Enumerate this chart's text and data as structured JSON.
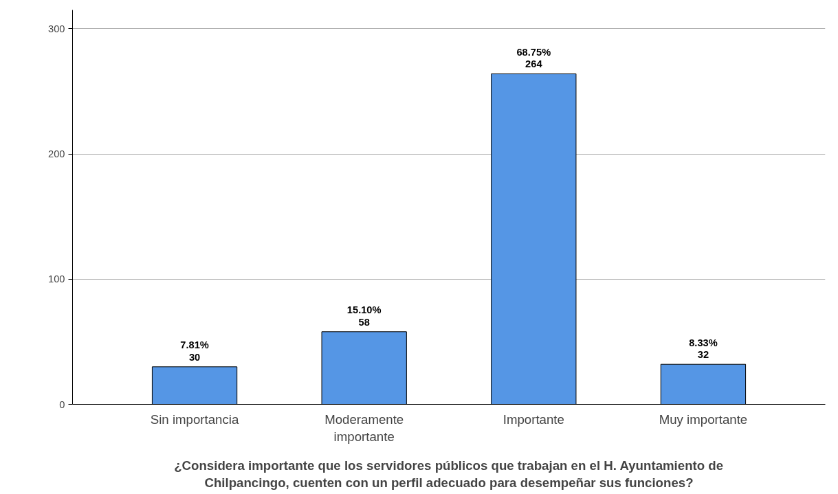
{
  "chart_data": {
    "type": "bar",
    "xlabel": "¿Considera importante que los servidores públicos que trabajan en el H. Ayuntamiento de Chilpancingo, cuenten con un perfil adecuado para desempeñar sus funciones?",
    "categories": [
      "Sin importancia",
      "Moderamente importante",
      "Importante",
      "Muy importante"
    ],
    "values": [
      30,
      58,
      264,
      32
    ],
    "value_labels": [
      "7.81%\n30",
      "15.10%\n58",
      "68.75%\n264",
      "8.33%\n32"
    ],
    "color": "#5596e5",
    "ylim": [
      0,
      315
    ],
    "yticks": [
      0,
      100,
      200,
      300
    ],
    "grid": "y"
  }
}
